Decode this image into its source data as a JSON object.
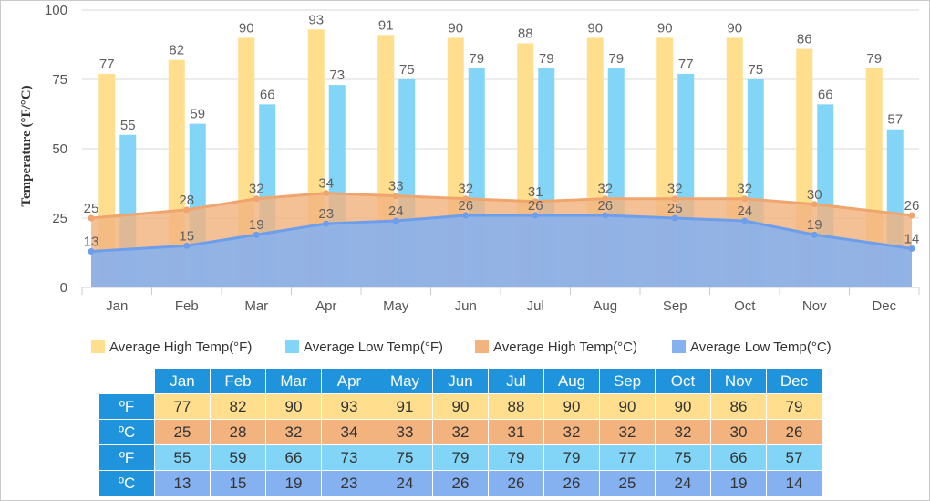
{
  "chart_data": {
    "type": "bar",
    "categories": [
      "Jan",
      "Feb",
      "Mar",
      "Apr",
      "May",
      "Jun",
      "Jul",
      "Aug",
      "Sep",
      "Oct",
      "Nov",
      "Dec"
    ],
    "ylabel": "Temperature (°F/°C)",
    "ylim": [
      0,
      100
    ],
    "yticks": [
      "0",
      "25",
      "50",
      "75",
      "100"
    ],
    "grid": true,
    "legend_position": "bottom",
    "series": [
      {
        "name": "Average High Temp(°F)",
        "kind": "bar",
        "color": "#ffdf8e",
        "values": [
          77,
          82,
          90,
          93,
          91,
          90,
          88,
          90,
          90,
          90,
          86,
          79
        ]
      },
      {
        "name": "Average Low Temp(°F)",
        "kind": "bar",
        "color": "#82d5f7",
        "values": [
          55,
          59,
          66,
          73,
          75,
          79,
          79,
          79,
          77,
          75,
          66,
          57
        ]
      },
      {
        "name": "Average High Temp(°C)",
        "kind": "area",
        "color": "#f2b37f",
        "values": [
          25,
          28,
          32,
          34,
          33,
          32,
          31,
          32,
          32,
          32,
          30,
          26
        ]
      },
      {
        "name": "Average Low Temp(°C)",
        "kind": "area",
        "color": "#85b1f0",
        "values": [
          13,
          15,
          19,
          23,
          24,
          26,
          26,
          26,
          25,
          24,
          19,
          14
        ]
      }
    ]
  },
  "table": {
    "months": [
      "Jan",
      "Feb",
      "Mar",
      "Apr",
      "May",
      "Jun",
      "Jul",
      "Aug",
      "Sep",
      "Oct",
      "Nov",
      "Dec"
    ],
    "rows": [
      {
        "unit": "ºF",
        "values": [
          "77",
          "82",
          "90",
          "93",
          "91",
          "90",
          "88",
          "90",
          "90",
          "90",
          "86",
          "79"
        ]
      },
      {
        "unit": "ºC",
        "values": [
          "25",
          "28",
          "32",
          "34",
          "33",
          "32",
          "31",
          "32",
          "32",
          "32",
          "30",
          "26"
        ]
      },
      {
        "unit": "ºF",
        "values": [
          "55",
          "59",
          "66",
          "73",
          "75",
          "79",
          "79",
          "79",
          "77",
          "75",
          "66",
          "57"
        ]
      },
      {
        "unit": "ºC",
        "values": [
          "13",
          "15",
          "19",
          "23",
          "24",
          "26",
          "26",
          "26",
          "25",
          "24",
          "19",
          "14"
        ]
      }
    ]
  },
  "colors": {
    "high_f": "#ffdf8e",
    "low_f": "#82d5f7",
    "high_c": "#f2b37f",
    "low_c": "#85b1f0",
    "high_c_line": "#f0a56e",
    "low_c_line": "#6d9eeb",
    "header": "#1f93dc"
  }
}
